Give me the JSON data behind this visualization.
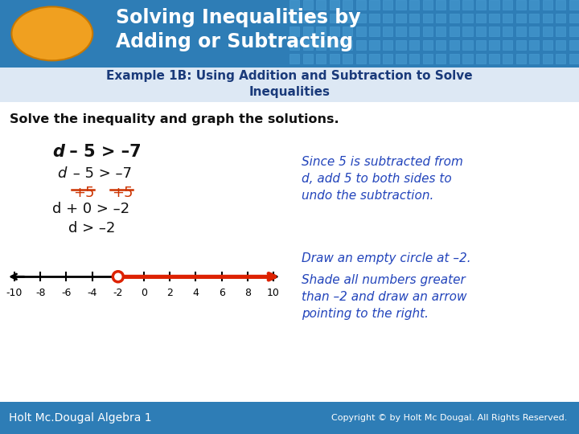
{
  "title_text": "Solving Inequalities by\nAdding or Subtracting",
  "title_bg_color": "#2e7db6",
  "title_text_color": "#ffffff",
  "title_font_size": 17,
  "oval_color": "#f0a020",
  "oval_edge_color": "#c87800",
  "example_text": "Example 1B: Using Addition and Subtraction to Solve\nInequalities",
  "example_text_color": "#1a3a7a",
  "example_font_size": 11,
  "example_bg": "#dde8f4",
  "solve_text": "Solve the inequality and graph the solutions.",
  "solve_text_color": "#111111",
  "solve_font_size": 11.5,
  "eq_color": "#111111",
  "plus_color": "#cc3300",
  "note_color": "#2244bb",
  "note_text": "Since 5 is subtracted from\nd, add 5 to both sides to\nundo the subtraction.",
  "note_text2": "Draw an empty circle at –2.",
  "note_text3": "Shade all numbers greater\nthan –2 and draw an arrow\npointing to the right.",
  "number_line_ticks": [
    -10,
    -8,
    -6,
    -4,
    -2,
    0,
    2,
    4,
    6,
    8,
    10
  ],
  "open_circle_at": -2,
  "arrow_color": "#dd2200",
  "footer_bg": "#2e7db6",
  "footer_left": "Holt Mc.Dougal Algebra 1",
  "footer_right": "Copyright © by Holt Mc Dougal. All Rights Reserved.",
  "footer_text_color": "#ffffff",
  "bg_color": "#ffffff",
  "grid_cell_color": "#4a9fd4",
  "grid_edge_color": "#5ab0e4"
}
